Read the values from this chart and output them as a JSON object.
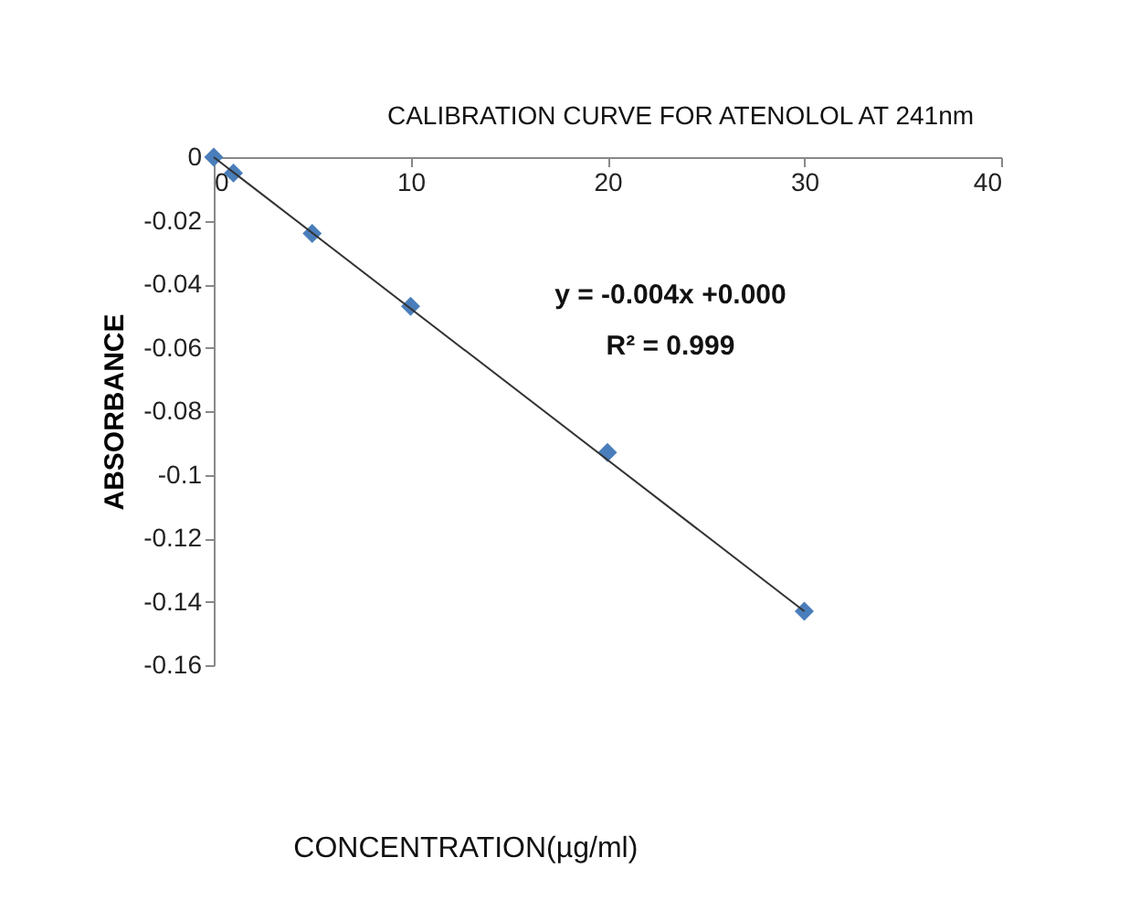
{
  "chart_data": {
    "type": "scatter",
    "title": "CALIBRATION CURVE FOR  ATENOLOL  AT 241nm",
    "ylabel": "ABSORBANCE",
    "x": [
      0,
      1,
      5,
      10,
      20,
      30
    ],
    "series": [
      {
        "color": "#4a7ebb",
        "marker": "diamond",
        "values": [
          0,
          -0.005,
          -0.024,
          -0.047,
          -0.093,
          -0.143
        ]
      },
      {
        "type": "line",
        "color": "#333333",
        "marker": "none",
        "line_style": "solid",
        "x": [
          0,
          30
        ],
        "values": [
          0,
          -0.143
        ]
      }
    ],
    "xlim": [
      0,
      40
    ],
    "xticks": [
      0,
      10,
      20,
      30,
      40
    ],
    "ylim": [
      -0.16,
      0
    ],
    "yticks": [
      0,
      -0.02,
      -0.04,
      -0.06,
      -0.08,
      -0.1,
      -0.12,
      -0.14,
      -0.16
    ],
    "annotations": [
      "y = -0.004x +0.000",
      "R² = 0.999",
      "CONCENTRATION(µg/ml)"
    ],
    "grid": false
  }
}
